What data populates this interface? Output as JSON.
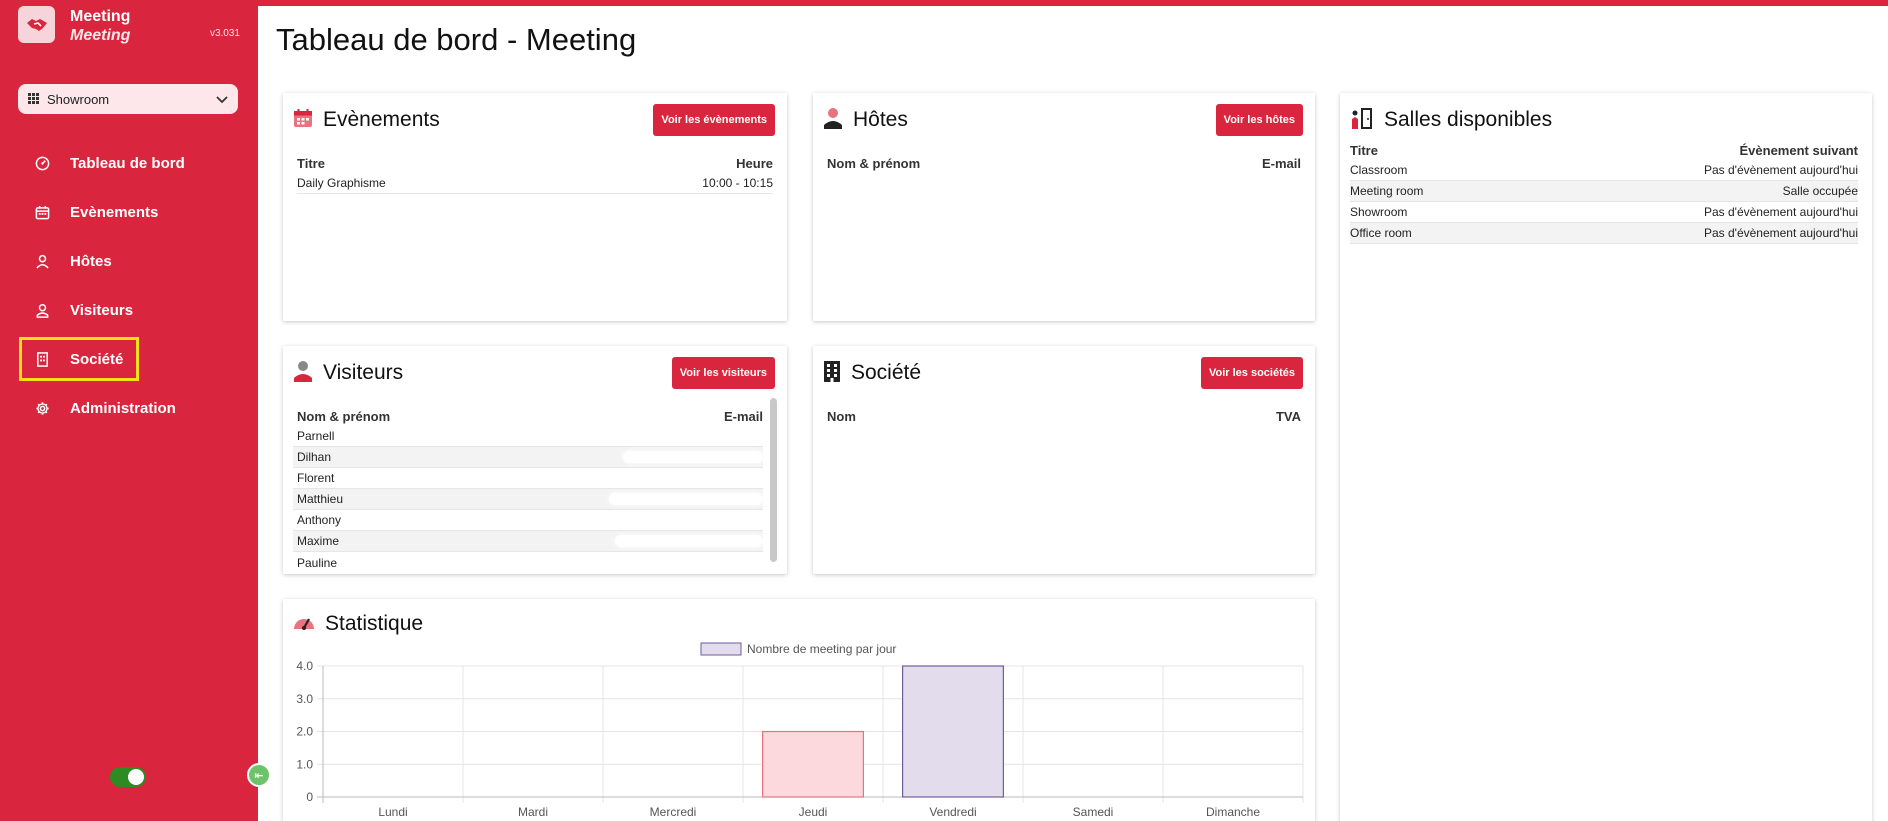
{
  "brand": {
    "name": "Meeting",
    "sub": "Meeting",
    "version": "v3.031"
  },
  "site_select": {
    "value": "Showroom"
  },
  "nav": [
    {
      "label": "Tableau de bord",
      "icon": "dashboard-icon"
    },
    {
      "label": "Evènements",
      "icon": "calendar-icon"
    },
    {
      "label": "Hôtes",
      "icon": "host-icon"
    },
    {
      "label": "Visiteurs",
      "icon": "user-icon"
    },
    {
      "label": "Société",
      "icon": "building-icon"
    },
    {
      "label": "Administration",
      "icon": "gear-icon"
    }
  ],
  "page": {
    "title": "Tableau de bord - Meeting"
  },
  "events": {
    "title": "Evènements",
    "button": "Voir les évènements",
    "col_title": "Titre",
    "col_time": "Heure",
    "rows": [
      {
        "title": "Daily Graphisme",
        "time": "10:00 - 10:15"
      }
    ]
  },
  "hosts": {
    "title": "Hôtes",
    "button": "Voir les hôtes",
    "col_name": "Nom & prénom",
    "col_email": "E-mail"
  },
  "rooms": {
    "title": "Salles disponibles",
    "col_title": "Titre",
    "col_next": "Évènement suivant",
    "rows": [
      {
        "name": "Classroom",
        "next": "Pas d'évènement aujourd'hui"
      },
      {
        "name": "Meeting room",
        "next": "Salle occupée"
      },
      {
        "name": "Showroom",
        "next": "Pas d'évènement aujourd'hui"
      },
      {
        "name": "Office room",
        "next": "Pas d'évènement aujourd'hui"
      }
    ]
  },
  "visitors": {
    "title": "Visiteurs",
    "button": "Voir les visiteurs",
    "col_name": "Nom & prénom",
    "col_email": "E-mail",
    "rows": [
      {
        "name": "Parnell"
      },
      {
        "name": "Dilhan"
      },
      {
        "name": "Florent"
      },
      {
        "name": "Matthieu"
      },
      {
        "name": "Anthony"
      },
      {
        "name": "Maxime"
      },
      {
        "name": "Pauline"
      }
    ]
  },
  "companies": {
    "title": "Société",
    "button": "Voir les sociétés",
    "col_name": "Nom",
    "col_vat": "TVA"
  },
  "stats": {
    "title": "Statistique"
  },
  "chart_data": {
    "type": "bar",
    "categories": [
      "Lundi",
      "Mardi",
      "Mercredi",
      "Jeudi",
      "Vendredi",
      "Samedi",
      "Dimanche"
    ],
    "series": [
      {
        "name": "Nombre de meeting par jour",
        "values": [
          0,
          0,
          0,
          2,
          4,
          0,
          0
        ]
      }
    ],
    "bar_colors": [
      "#fcd9dc",
      "#fcd9dc",
      "#fcd9dc",
      "#fcd9dc",
      "#e3dcec",
      "#fcd9dc",
      "#fcd9dc"
    ],
    "bar_borders": [
      "#e8737f",
      "#e8737f",
      "#e8737f",
      "#e8737f",
      "#6e5e9c",
      "#e8737f",
      "#e8737f"
    ],
    "y_ticks": [
      "4.0",
      "3.0",
      "2.0",
      "1.0",
      "0"
    ],
    "ylim": [
      0,
      4
    ],
    "grid": true,
    "legend": "top"
  },
  "colors": {
    "brand": "#d9253d",
    "toggle_on": "#2e8a22"
  }
}
